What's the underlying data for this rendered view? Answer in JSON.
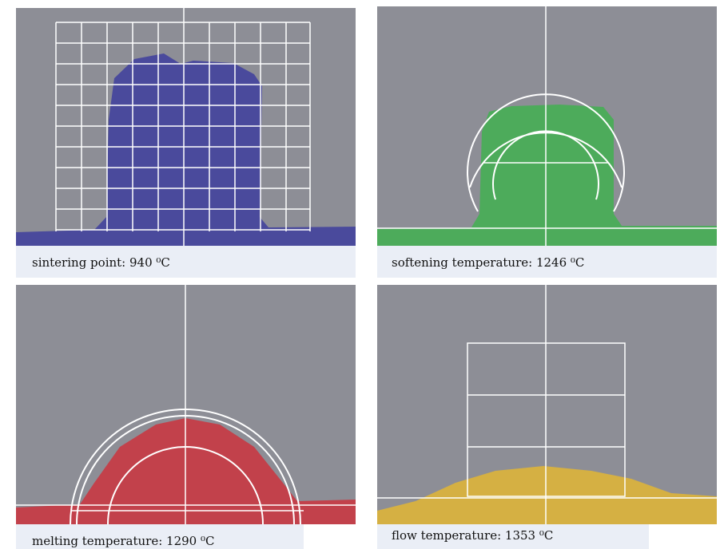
{
  "panels": [
    {
      "caption": "sintering point: 940 ⁰C"
    },
    {
      "caption": "softening temperature: 1246 ⁰C"
    },
    {
      "caption": "melting temperature: 1290 ⁰C"
    },
    {
      "caption": "flow temperature: 1353 ⁰C"
    }
  ]
}
